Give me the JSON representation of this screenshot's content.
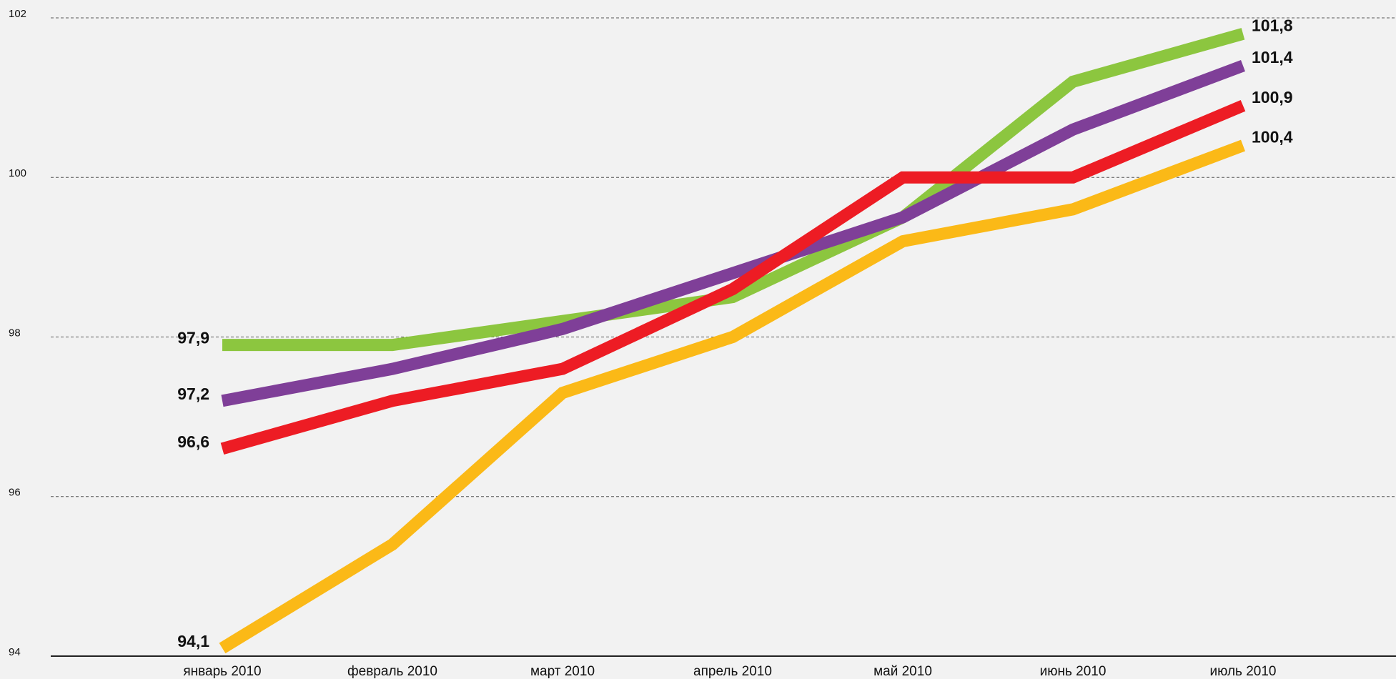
{
  "chart_data": {
    "type": "line",
    "categories": [
      "январь 2010",
      "февраль 2010",
      "март 2010",
      "апрель 2010",
      "май 2010",
      "июнь 2010",
      "июль 2010"
    ],
    "series": [
      {
        "color": "#8cc63f",
        "values": [
          97.9,
          97.9,
          98.2,
          98.5,
          99.5,
          101.2,
          101.8
        ],
        "value_labels": [
          "97,9",
          null,
          null,
          null,
          null,
          null,
          "101,8"
        ]
      },
      {
        "color": "#7f3f98",
        "values": [
          97.2,
          97.6,
          98.1,
          98.8,
          99.5,
          100.6,
          101.4
        ],
        "value_labels": [
          "97,2",
          null,
          null,
          null,
          null,
          null,
          "101,4"
        ]
      },
      {
        "color": "#ed1c24",
        "values": [
          96.6,
          97.2,
          97.6,
          98.6,
          100,
          100,
          100.9
        ],
        "value_labels": [
          "96,6",
          null,
          null,
          null,
          null,
          null,
          "100,9"
        ]
      },
      {
        "color": "#fbb917",
        "values": [
          94.1,
          95.4,
          97.3,
          98.0,
          99.2,
          99.6,
          100.4
        ],
        "value_labels": [
          "94,1",
          null,
          null,
          null,
          null,
          null,
          "100,4"
        ]
      }
    ],
    "ylim": [
      94,
      102
    ],
    "yticks": [
      94,
      96,
      98,
      100,
      102
    ],
    "grid": true
  }
}
